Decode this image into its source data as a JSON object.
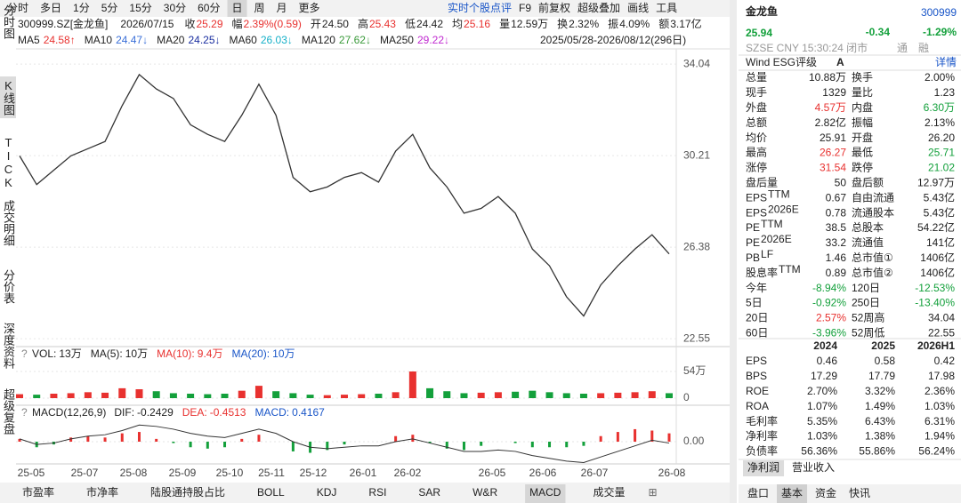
{
  "toolbar": {
    "periods": [
      {
        "label": "分时"
      },
      {
        "label": "多日"
      },
      {
        "label": "1分"
      },
      {
        "label": "5分"
      },
      {
        "label": "15分"
      },
      {
        "label": "30分"
      },
      {
        "label": "60分"
      },
      {
        "label": "日",
        "selected": true
      },
      {
        "label": "周"
      },
      {
        "label": "月"
      },
      {
        "label": "更多"
      }
    ],
    "tools": [
      "实时个股点评",
      "F9",
      "前复权",
      "超级叠加",
      "画线",
      "工具"
    ]
  },
  "quote_line": {
    "code": "300999.SZ[金龙鱼]",
    "date": "2026/07/15",
    "items": [
      {
        "label": "收",
        "value": "25.29",
        "color": "#e8312f"
      },
      {
        "label": "幅",
        "value": "2.39%(0.59)",
        "color": "#e8312f"
      },
      {
        "label": "开",
        "value": "24.50"
      },
      {
        "label": "高",
        "value": "25.43",
        "color": "#e8312f"
      },
      {
        "label": "低",
        "value": "24.42"
      },
      {
        "label": "均",
        "value": "25.16",
        "color": "#e8312f"
      },
      {
        "label": "量",
        "value": "12.59万"
      },
      {
        "label": "换",
        "value": "2.32%"
      },
      {
        "label": "振",
        "value": "4.09%"
      },
      {
        "label": "额",
        "value": "3.17亿"
      }
    ]
  },
  "ma_legend": {
    "items": [
      {
        "label": "MA5",
        "value": "24.58↑",
        "color": "#e8312f"
      },
      {
        "label": "MA10",
        "value": "24.47↓",
        "color": "#3a6fd8"
      },
      {
        "label": "MA20",
        "value": "24.25↓",
        "color": "#1a2ea0"
      },
      {
        "label": "MA60",
        "value": "26.03↓",
        "color": "#16b0c8"
      },
      {
        "label": "MA120",
        "value": "27.62↓",
        "color": "#3a9a3a"
      },
      {
        "label": "MA250",
        "value": "29.22↓",
        "color": "#c02ad0"
      }
    ],
    "range": "2025/05/28-2026/08/12(296日)"
  },
  "side_tabs": [
    {
      "label": "分时图"
    },
    {
      "label": "K线图",
      "selected": true
    },
    {
      "label": "TICK"
    },
    {
      "label": "成交明细"
    },
    {
      "label": "分价表"
    },
    {
      "label": "深度资料"
    },
    {
      "label": "超级复盘"
    }
  ],
  "price_chart": {
    "ylim": [
      22.22,
      34.49
    ],
    "yticks": [
      34.04,
      30.21,
      26.38,
      22.55
    ],
    "color": "#333333",
    "closes": [
      30.2,
      29.0,
      29.6,
      30.2,
      30.5,
      30.8,
      32.3,
      33.6,
      33.0,
      32.6,
      31.5,
      31.1,
      30.8,
      31.9,
      33.2,
      31.9,
      29.3,
      28.7,
      28.9,
      29.3,
      29.5,
      29.1,
      30.4,
      31.1,
      29.7,
      28.9,
      27.8,
      28.0,
      28.5,
      27.8,
      26.3,
      25.6,
      24.3,
      23.5,
      24.8,
      25.6,
      26.3,
      26.9,
      26.1
    ]
  },
  "volume_chart": {
    "header": [
      {
        "label": "VOL:",
        "value": "13万"
      },
      {
        "label": "MA(5):",
        "value": "10万"
      },
      {
        "label": "MA(10):",
        "value": "9.4万",
        "color": "#e8312f"
      },
      {
        "label": "MA(20):",
        "value": "10万",
        "color": "#1a56c8"
      }
    ],
    "ylim": [
      0,
      54
    ],
    "yticks": [
      {
        "value": 54,
        "label": "54万"
      },
      0
    ],
    "up_color": "#e8312f",
    "down_color": "#13a03b",
    "values": [
      8,
      7,
      9,
      10,
      12,
      11,
      20,
      18,
      14,
      10,
      9,
      8,
      9,
      15,
      25,
      14,
      10,
      7,
      6,
      7,
      8,
      9,
      12,
      54,
      20,
      14,
      10,
      11,
      12,
      13,
      15,
      12,
      10,
      9,
      10,
      11,
      12,
      14,
      10
    ]
  },
  "macd_chart": {
    "header": [
      {
        "label": "MACD(12,26,9)"
      },
      {
        "label": "DIF:",
        "value": "-0.2429"
      },
      {
        "label": "DEA:",
        "value": "-0.4513",
        "color": "#e8312f"
      },
      {
        "label": "MACD:",
        "value": "0.4167",
        "color": "#1a56c8"
      }
    ],
    "ylim": [
      -0.8,
      0.8
    ],
    "yticks": [
      {
        "value": 0,
        "label": "0.00"
      }
    ],
    "up_color": "#e8312f",
    "down_color": "#13a03b",
    "dif_color": "#333333",
    "histogram": [
      0.1,
      -0.2,
      -0.1,
      0.15,
      0.2,
      0.15,
      0.3,
      0.35,
      0.1,
      -0.05,
      -0.2,
      -0.25,
      -0.2,
      0.1,
      0.25,
      0,
      -0.35,
      -0.4,
      -0.3,
      -0.1,
      0,
      0,
      0.2,
      0.25,
      -0.05,
      -0.25,
      -0.3,
      -0.15,
      0,
      -0.05,
      -0.2,
      -0.2,
      -0.2,
      -0.15,
      0.2,
      0.35,
      0.45,
      0.4,
      0.3
    ],
    "dif": [
      0.1,
      -0.1,
      -0.05,
      0.1,
      0.2,
      0.25,
      0.4,
      0.6,
      0.55,
      0.45,
      0.3,
      0.2,
      0.15,
      0.3,
      0.45,
      0.3,
      0,
      -0.2,
      -0.25,
      -0.2,
      -0.15,
      -0.15,
      0,
      0.1,
      -0.05,
      -0.2,
      -0.35,
      -0.35,
      -0.3,
      -0.35,
      -0.5,
      -0.6,
      -0.7,
      -0.75,
      -0.55,
      -0.35,
      -0.15,
      0.05,
      -0.05
    ]
  },
  "date_labels": [
    "25-05",
    "25-07",
    "25-08",
    "25-09",
    "25-10",
    "25-11",
    "25-12",
    "26-01",
    "26-02",
    "26-05",
    "26-06",
    "26-07",
    "26-08"
  ],
  "bottom_tabs": [
    {
      "label": "市盈率"
    },
    {
      "label": "市净率"
    },
    {
      "label": "陆股通持股占比"
    },
    {
      "label": "BOLL"
    },
    {
      "label": "KDJ"
    },
    {
      "label": "RSI"
    },
    {
      "label": "SAR"
    },
    {
      "label": "W&R"
    },
    {
      "label": "MACD",
      "selected": true
    },
    {
      "label": "成交量"
    }
  ],
  "quote_panel": {
    "name": "金龙鱼",
    "code": "300999",
    "price": "25.94",
    "change": "-0.34",
    "change_pct": "-1.29%",
    "status": "SZSE  CNY  15:30:24  闭市",
    "badges": [
      "通",
      "融"
    ],
    "esg_label": "Wind ESG评级",
    "esg_rating": "A",
    "esg_link": "详情",
    "up": "#e8312f",
    "down": "#13a03b",
    "rows": [
      {
        "l1": "总量",
        "v1": "10.88万",
        "l2": "换手",
        "v2": "2.00%"
      },
      {
        "l1": "现手",
        "v1": "1329",
        "l2": "量比",
        "v2": "1.23"
      },
      {
        "l1": "外盘",
        "v1": "4.57万",
        "c1": "up",
        "l2": "内盘",
        "v2": "6.30万",
        "c2": "down"
      },
      {
        "l1": "总额",
        "v1": "2.82亿",
        "l2": "振幅",
        "v2": "2.13%"
      },
      {
        "l1": "均价",
        "v1": "25.91",
        "l2": "开盘",
        "v2": "26.20"
      },
      {
        "l1": "最高",
        "v1": "26.27",
        "c1": "up",
        "l2": "最低",
        "v2": "25.71",
        "c2": "down"
      },
      {
        "l1": "涨停",
        "v1": "31.54",
        "c1": "up",
        "l2": "跌停",
        "v2": "21.02",
        "c2": "down"
      },
      {
        "l1": "盘后量",
        "v1": "50",
        "l2": "盘后额",
        "v2": "12.97万"
      },
      {
        "l1": "EPS",
        "s1": "TTM",
        "v1": "0.67",
        "l2": "自由流通",
        "v2": "5.43亿"
      },
      {
        "l1": "EPS",
        "s1": "2026E",
        "v1": "0.78",
        "l2": "流通股本",
        "v2": "5.43亿"
      },
      {
        "l1": "PE",
        "s1": "TTM",
        "v1": "38.5",
        "l2": "总股本",
        "v2": "54.22亿"
      },
      {
        "l1": "PE",
        "s1": "2026E",
        "v1": "33.2",
        "l2": "流通值",
        "v2": "141亿"
      },
      {
        "l1": "PB",
        "s1": "LF",
        "v1": "1.46",
        "l2": "总市值①",
        "v2": "1406亿"
      },
      {
        "l1": "股息率",
        "s1": "TTM",
        "v1": "0.89",
        "l2": "总市值②",
        "v2": "1406亿"
      },
      {
        "l1": "今年",
        "v1": "-8.94%",
        "c1": "down",
        "l2": "120日",
        "v2": "-12.53%",
        "c2": "down"
      },
      {
        "l1": "5日",
        "v1": "-0.92%",
        "c1": "down",
        "l2": "250日",
        "v2": "-13.40%",
        "c2": "down"
      },
      {
        "l1": "20日",
        "v1": "2.57%",
        "c1": "up",
        "l2": "52周高",
        "v2": "34.04"
      },
      {
        "l1": "60日",
        "v1": "-3.96%",
        "c1": "down",
        "l2": "52周低",
        "v2": "22.55"
      }
    ],
    "years": [
      "2024",
      "2025",
      "2026H1"
    ],
    "financials": [
      {
        "label": "EPS",
        "values": [
          "0.46",
          "0.58",
          "0.42"
        ]
      },
      {
        "label": "BPS",
        "values": [
          "17.29",
          "17.79",
          "17.98"
        ]
      },
      {
        "label": "ROE",
        "values": [
          "2.70%",
          "3.32%",
          "2.36%"
        ]
      },
      {
        "label": "ROA",
        "values": [
          "1.07%",
          "1.49%",
          "1.03%"
        ]
      },
      {
        "label": "毛利率",
        "values": [
          "5.35%",
          "6.43%",
          "6.31%"
        ]
      },
      {
        "label": "净利率",
        "values": [
          "1.03%",
          "1.38%",
          "1.94%"
        ]
      },
      {
        "label": "负债率",
        "values": [
          "56.36%",
          "55.86%",
          "56.24%"
        ]
      }
    ],
    "fin_tabs": [
      {
        "label": "净利润",
        "selected": true
      },
      {
        "label": "营业收入"
      }
    ],
    "panel_tabs": [
      {
        "label": "盘口"
      },
      {
        "label": "基本",
        "selected": true
      },
      {
        "label": "资金"
      },
      {
        "label": "快讯"
      }
    ]
  }
}
